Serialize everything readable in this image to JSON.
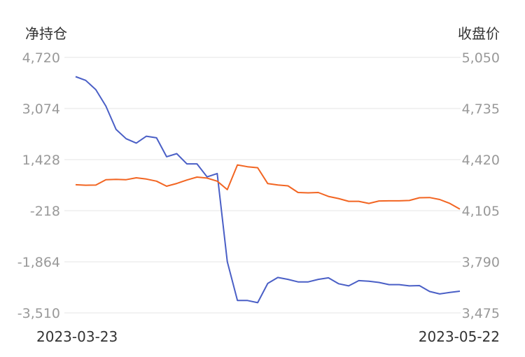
{
  "chart_data": {
    "type": "line",
    "x_start_label": "2023-03-23",
    "x_end_label": "2023-05-22",
    "left_axis": {
      "title": "净持仓",
      "ticks": [
        "4,720",
        "3,074",
        "1,428",
        "-218",
        "-1,864",
        "-3,510"
      ],
      "range": [
        -3510,
        4720
      ]
    },
    "right_axis": {
      "title": "收盘价",
      "ticks": [
        "5,050",
        "4,735",
        "4,420",
        "4,105",
        "3,790",
        "3,475"
      ],
      "range": [
        3475,
        5050
      ]
    },
    "grid": true,
    "series": [
      {
        "axis": "left",
        "color": "#4a5fc6",
        "values": [
          4100,
          3980,
          3680,
          3150,
          2400,
          2100,
          1960,
          2180,
          2130,
          1520,
          1620,
          1290,
          1290,
          870,
          980,
          -1860,
          -3110,
          -3110,
          -3180,
          -2560,
          -2370,
          -2430,
          -2510,
          -2510,
          -2430,
          -2380,
          -2570,
          -2640,
          -2470,
          -2490,
          -2530,
          -2600,
          -2600,
          -2640,
          -2630,
          -2820,
          -2900,
          -2850,
          -2810
        ]
      },
      {
        "axis": "right",
        "color": "#f26522",
        "values": [
          4265,
          4262,
          4263,
          4296,
          4298,
          4296,
          4308,
          4300,
          4287,
          4256,
          4273,
          4294,
          4312,
          4306,
          4287,
          4235,
          4387,
          4376,
          4370,
          4272,
          4264,
          4258,
          4217,
          4215,
          4217,
          4193,
          4180,
          4163,
          4163,
          4150,
          4165,
          4166,
          4166,
          4168,
          4185,
          4186,
          4174,
          4150,
          4115
        ]
      }
    ]
  }
}
